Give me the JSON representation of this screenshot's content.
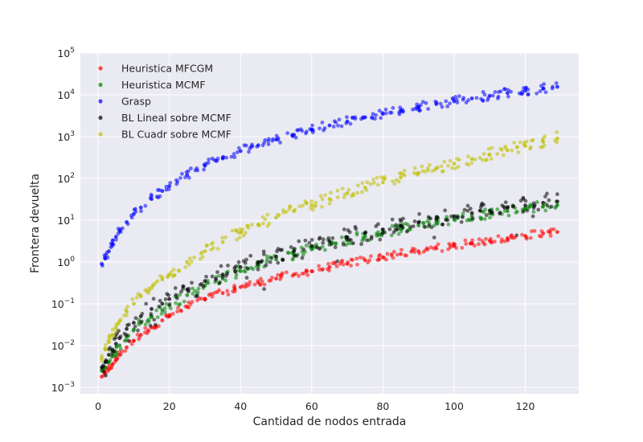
{
  "chart_data": {
    "type": "scatter",
    "title": "",
    "xlabel": "Cantidad de nodos entrada",
    "ylabel": "Frontera devuelta",
    "xlim": [
      -5,
      135
    ],
    "ylim": [
      0.0007,
      100000
    ],
    "yscale": "log",
    "x_ticks": [
      "0",
      "20",
      "40",
      "60",
      "80",
      "100",
      "120"
    ],
    "y_tick_base": "10",
    "y_tick_exponents": [
      "−3",
      "−2",
      "−1",
      "0",
      "1",
      "2",
      "3",
      "4",
      "5"
    ],
    "grid": true,
    "legend_position": "upper-left",
    "background": "#eaeaf2",
    "series": [
      {
        "name": "Heuristica MFCGM",
        "color": "#ff0000",
        "x": [
          1,
          2,
          3,
          4,
          5,
          6,
          8,
          10,
          12,
          15,
          18,
          20,
          25,
          30,
          35,
          40,
          45,
          50,
          55,
          60,
          65,
          70,
          75,
          80,
          85,
          90,
          95,
          100,
          105,
          110,
          115,
          120,
          125,
          129
        ],
        "values": [
          0.0018,
          0.0022,
          0.0027,
          0.0035,
          0.0045,
          0.006,
          0.009,
          0.013,
          0.018,
          0.027,
          0.04,
          0.05,
          0.085,
          0.13,
          0.18,
          0.25,
          0.32,
          0.4,
          0.5,
          0.6,
          0.75,
          0.9,
          1.1,
          1.3,
          1.55,
          1.8,
          2.1,
          2.4,
          2.8,
          3.2,
          3.7,
          4.2,
          4.8,
          5.2
        ]
      },
      {
        "name": "Heuristica MCMF",
        "color": "#008000",
        "x": [
          1,
          2,
          3,
          4,
          5,
          6,
          8,
          10,
          12,
          15,
          18,
          20,
          25,
          30,
          35,
          40,
          45,
          50,
          55,
          60,
          65,
          70,
          75,
          80,
          85,
          90,
          95,
          100,
          105,
          110,
          115,
          120,
          125,
          129
        ],
        "values": [
          0.0025,
          0.003,
          0.004,
          0.0055,
          0.007,
          0.01,
          0.016,
          0.024,
          0.035,
          0.05,
          0.07,
          0.09,
          0.16,
          0.27,
          0.4,
          0.6,
          0.85,
          1.15,
          1.5,
          2.0,
          2.6,
          3.3,
          4.1,
          5.0,
          6.2,
          7.5,
          9.0,
          10.5,
          12.5,
          14.5,
          16.5,
          19.0,
          21.5,
          23.0
        ]
      },
      {
        "name": "Grasp",
        "color": "#0000ff",
        "x": [
          1,
          2,
          3,
          4,
          5,
          6,
          8,
          10,
          12,
          15,
          18,
          20,
          25,
          30,
          35,
          40,
          45,
          50,
          55,
          60,
          65,
          70,
          75,
          80,
          85,
          90,
          95,
          100,
          105,
          110,
          115,
          120,
          125,
          129
        ],
        "values": [
          0.9,
          1.2,
          1.8,
          2.7,
          4.0,
          5.5,
          9.0,
          14.0,
          20.0,
          32.0,
          50.0,
          65.0,
          120.0,
          200.0,
          300.0,
          450.0,
          620.0,
          850.0,
          1100.0,
          1450.0,
          1850.0,
          2300.0,
          2900.0,
          3500.0,
          4200.0,
          5000.0,
          6000.0,
          7000.0,
          8200.0,
          9500.0,
          11000.0,
          12500.0,
          14000.0,
          15500.0
        ]
      },
      {
        "name": "BL Lineal sobre MCMF",
        "color": "#000000",
        "x": [
          1,
          2,
          3,
          4,
          5,
          6,
          8,
          10,
          12,
          15,
          18,
          20,
          25,
          30,
          35,
          40,
          45,
          50,
          55,
          60,
          65,
          70,
          75,
          80,
          85,
          90,
          95,
          100,
          105,
          110,
          115,
          120,
          125,
          129
        ],
        "values": [
          0.003,
          0.004,
          0.006,
          0.008,
          0.011,
          0.015,
          0.025,
          0.035,
          0.05,
          0.075,
          0.1,
          0.13,
          0.22,
          0.35,
          0.5,
          0.75,
          1.0,
          1.35,
          1.8,
          2.4,
          3.1,
          3.9,
          4.9,
          6.0,
          7.3,
          8.8,
          10.5,
          12.5,
          14.8,
          17.0,
          19.8,
          22.5,
          26.0,
          28.0
        ]
      },
      {
        "name": "BL Cuadr sobre MCMF",
        "color": "#bfbf00",
        "x": [
          1,
          2,
          3,
          4,
          5,
          6,
          8,
          10,
          12,
          15,
          18,
          20,
          25,
          30,
          35,
          40,
          45,
          50,
          55,
          60,
          65,
          70,
          75,
          80,
          85,
          90,
          95,
          100,
          105,
          110,
          115,
          120,
          125,
          129
        ],
        "values": [
          0.005,
          0.008,
          0.012,
          0.018,
          0.026,
          0.038,
          0.065,
          0.1,
          0.15,
          0.24,
          0.38,
          0.5,
          1.0,
          1.8,
          3.0,
          5.0,
          7.8,
          11.5,
          16.5,
          23.0,
          32.0,
          44.0,
          60.0,
          80.0,
          105.0,
          135.0,
          175.0,
          225.0,
          290.0,
          370.0,
          470.0,
          600.0,
          750.0,
          900.0
        ]
      }
    ]
  }
}
